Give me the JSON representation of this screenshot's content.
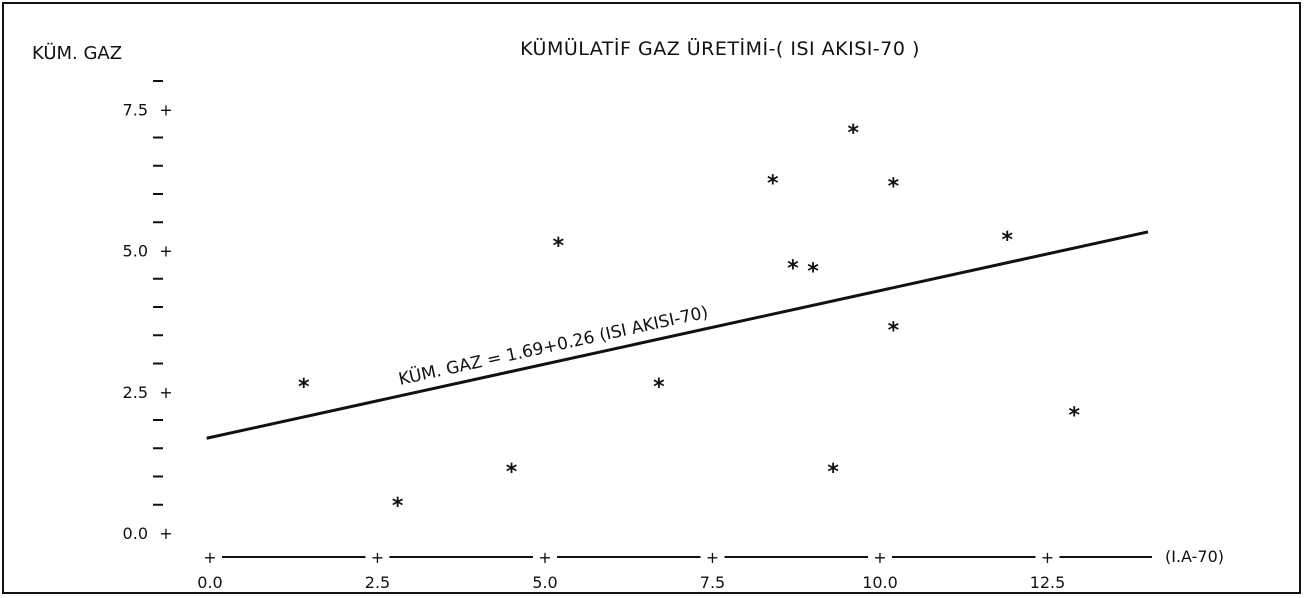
{
  "chart_data": {
    "type": "scatter",
    "title": "KÜMÜLATİF GAZ ÜRETİMİ-( ISI AKISI-70 )",
    "ylabel": "KÜM. GAZ",
    "xlabel": "(I.A-70)",
    "xlim": [
      0,
      14
    ],
    "ylim": [
      0,
      8
    ],
    "x_ticks": [
      "0.0",
      "2.5",
      "5.0",
      "7.5",
      "10.0",
      "12.5"
    ],
    "y_ticks": [
      "0.0",
      "2.5",
      "5.0",
      "7.5"
    ],
    "grid": false,
    "points": [
      {
        "x": 1.4,
        "y": 2.6
      },
      {
        "x": 2.8,
        "y": 0.5
      },
      {
        "x": 4.5,
        "y": 1.1
      },
      {
        "x": 5.2,
        "y": 5.1
      },
      {
        "x": 6.7,
        "y": 2.6
      },
      {
        "x": 8.4,
        "y": 6.2
      },
      {
        "x": 8.7,
        "y": 4.7
      },
      {
        "x": 9.0,
        "y": 4.65
      },
      {
        "x": 9.3,
        "y": 1.1
      },
      {
        "x": 9.6,
        "y": 7.1
      },
      {
        "x": 10.2,
        "y": 6.15
      },
      {
        "x": 10.2,
        "y": 3.6
      },
      {
        "x": 11.9,
        "y": 5.2
      },
      {
        "x": 12.9,
        "y": 2.1
      }
    ],
    "fit_line": {
      "label": "KÜM. GAZ = 1.69+0.26 (ISI AKISI-70)",
      "intercept": 1.69,
      "slope": 0.26,
      "x_range": [
        0,
        14
      ]
    }
  }
}
